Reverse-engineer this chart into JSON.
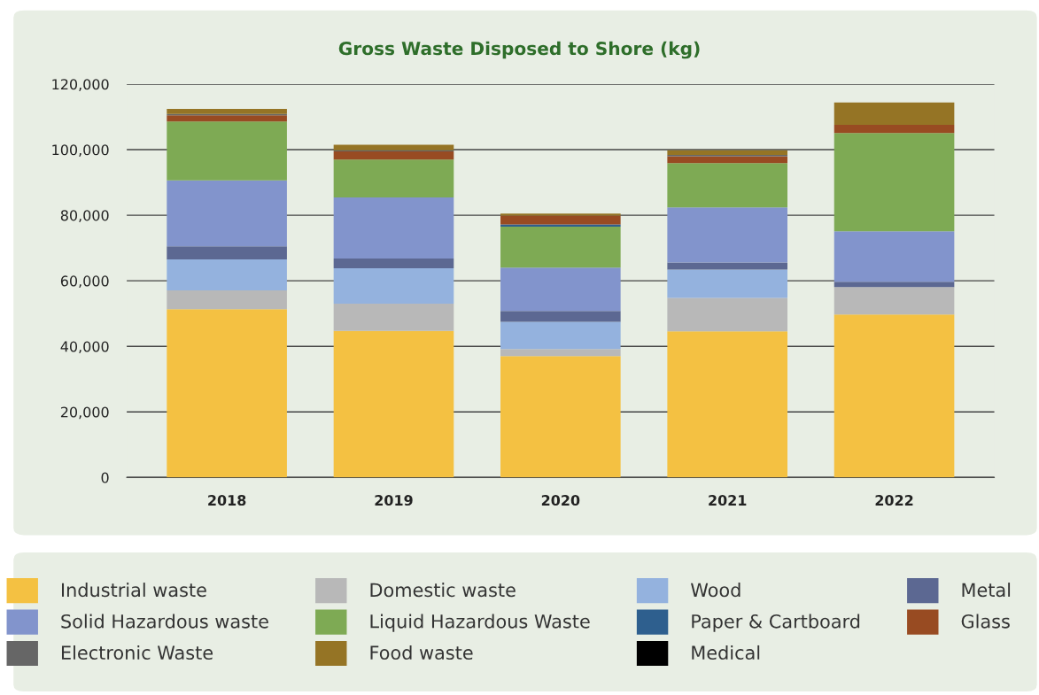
{
  "chart_data": {
    "type": "bar",
    "title": "Gross Waste Disposed to Shore (kg)",
    "stacked": true,
    "categories": [
      "2018",
      "2019",
      "2020",
      "2021",
      "2022"
    ],
    "series": [
      {
        "name": "Industrial waste",
        "color": "#f4c142",
        "values": [
          51300,
          44700,
          37000,
          44600,
          49700
        ]
      },
      {
        "name": "Domestic waste",
        "color": "#b8b8b8",
        "values": [
          5800,
          8300,
          2200,
          10200,
          8400
        ]
      },
      {
        "name": "Wood",
        "color": "#94b2de",
        "values": [
          9400,
          10800,
          8300,
          8600,
          0
        ]
      },
      {
        "name": "Metal",
        "color": "#5c6892",
        "values": [
          4000,
          3000,
          3300,
          2200,
          1600
        ]
      },
      {
        "name": "Solid Hazardous waste",
        "color": "#8294cc",
        "values": [
          20100,
          18600,
          13200,
          16800,
          15400
        ]
      },
      {
        "name": "Liquid Hazardous Waste",
        "color": "#7eaa54",
        "values": [
          18000,
          11600,
          12500,
          13500,
          30000
        ]
      },
      {
        "name": "Paper & Cartboard",
        "color": "#2e5f8e",
        "values": [
          0,
          0,
          700,
          0,
          0
        ]
      },
      {
        "name": "Glass",
        "color": "#984b22",
        "values": [
          1900,
          2500,
          2700,
          2100,
          2500
        ]
      },
      {
        "name": "Electronic Waste",
        "color": "#666666",
        "values": [
          400,
          300,
          0,
          400,
          0
        ]
      },
      {
        "name": "Food waste",
        "color": "#957425",
        "values": [
          1500,
          1700,
          600,
          1400,
          6800
        ]
      },
      {
        "name": "Medical",
        "color": "#000000",
        "values": [
          0,
          0,
          0,
          0,
          0
        ]
      }
    ],
    "ylim": [
      0,
      120000
    ],
    "yticks": [
      0,
      {
        "value": 20000,
        "label": "20,000"
      },
      {
        "value": 40000,
        "label": "40,000"
      },
      {
        "value": 60000,
        "label": "60,000"
      },
      {
        "value": 80000,
        "label": "80,000"
      },
      {
        "value": 100000,
        "label": "100,000"
      },
      {
        "value": 120000,
        "label": "120,000"
      }
    ],
    "grid": "y",
    "legend": "bottom"
  }
}
